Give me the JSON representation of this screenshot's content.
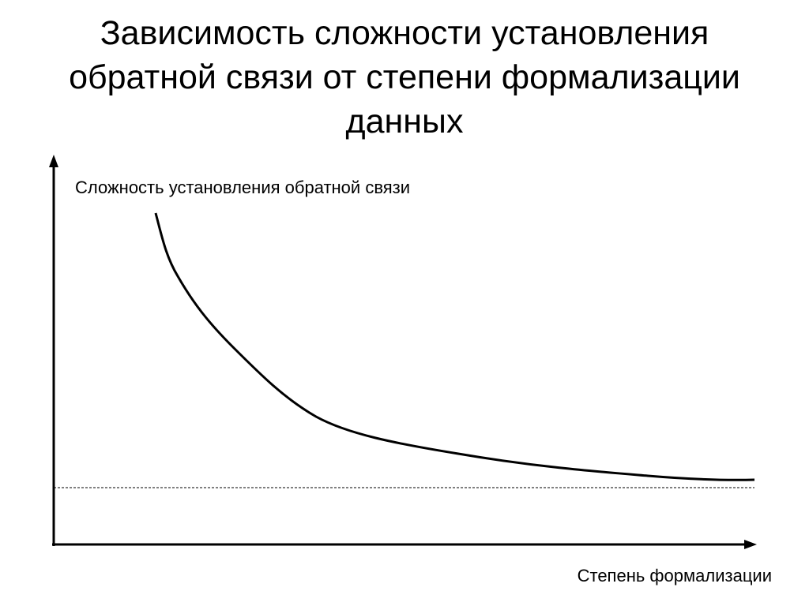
{
  "title_lines": [
    "Зависимость сложности установления",
    "обратной связи от степени формализации",
    "данных"
  ],
  "y_axis_label": "Сложность установления обратной связи",
  "x_axis_label": "Степень формализации"
}
